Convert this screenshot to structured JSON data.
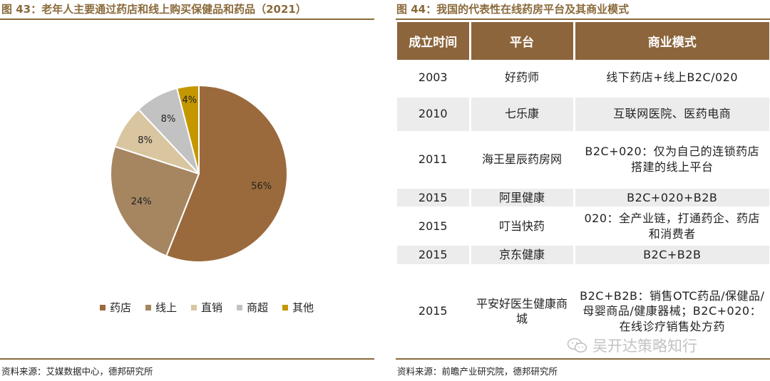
{
  "left": {
    "title": "图 43：老年人主要通过药店和线上购买保健品和药品（2021）",
    "source": "资料来源：艾媒数据中心，德邦研究所"
  },
  "right": {
    "title": "图 44：我国的代表性在线药房平台及其商业模式",
    "source": "资料来源：前瞻产业研究院，德邦研究所",
    "table": {
      "headers": [
        "成立时间",
        "平台",
        "商业模式"
      ],
      "rows": [
        {
          "year": "2003",
          "platform": "好药师",
          "model": "线下药店+线上B2C/020"
        },
        {
          "year": "2010",
          "platform": "七乐康",
          "model": "互联网医院、医药电商"
        },
        {
          "year": "2011",
          "platform": "海王星辰药房网",
          "model": "B2C+020：仅为自己的连锁药店搭建的线上平台"
        },
        {
          "year": "2015",
          "platform": "阿里健康",
          "model": "B2C+020+B2B"
        },
        {
          "year": "2015",
          "platform": "叮当快药",
          "model": "020：全产业链，打通药企、药店和消费者"
        },
        {
          "year": "2015",
          "platform": "京东健康",
          "model": "B2C+B2B"
        },
        {
          "year": "2015",
          "platform": "平安好医生健康商城",
          "model": "B2C+B2B：销售OTC药品/保健品/母婴商品/健康器械；B2C+020：在线诊疗销售处方药"
        }
      ]
    }
  },
  "chart_data": {
    "type": "pie",
    "title": "",
    "categories": [
      "药店",
      "线上",
      "直销",
      "商超",
      "其他"
    ],
    "values": [
      56,
      24,
      8,
      8,
      4
    ],
    "labels": [
      "56%",
      "24%",
      "8%",
      "8%",
      "4%"
    ],
    "colors": [
      "#9b6a3c",
      "#a58661",
      "#d9c6a0",
      "#c2c2c2",
      "#c49700"
    ],
    "legend_position": "bottom"
  },
  "watermark": {
    "text": "吴开达策略知行",
    "icon": "wechat-icon"
  }
}
